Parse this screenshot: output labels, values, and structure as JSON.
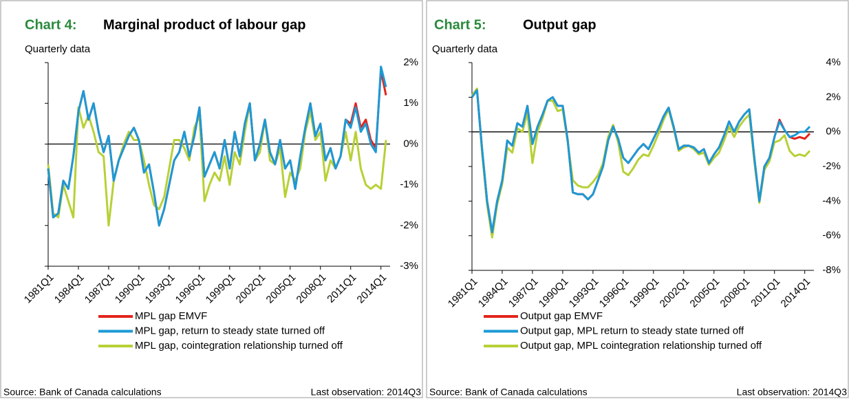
{
  "chart_data": [
    {
      "type": "line",
      "chart_label": "Chart 4:",
      "title": "Marginal product of labour gap",
      "subtitle": "Quarterly data",
      "source": "Source: Bank of Canada calculations",
      "note": "Last observation: 2014Q3",
      "x": [
        "1981Q1",
        "1981Q3",
        "1982Q1",
        "1982Q3",
        "1983Q1",
        "1983Q3",
        "1984Q1",
        "1984Q3",
        "1985Q1",
        "1985Q3",
        "1986Q1",
        "1986Q3",
        "1987Q1",
        "1987Q3",
        "1988Q1",
        "1988Q3",
        "1989Q1",
        "1989Q3",
        "1990Q1",
        "1990Q3",
        "1991Q1",
        "1991Q3",
        "1992Q1",
        "1992Q3",
        "1993Q1",
        "1993Q3",
        "1994Q1",
        "1994Q3",
        "1995Q1",
        "1995Q3",
        "1996Q1",
        "1996Q3",
        "1997Q1",
        "1997Q3",
        "1998Q1",
        "1998Q3",
        "1999Q1",
        "1999Q3",
        "2000Q1",
        "2000Q3",
        "2001Q1",
        "2001Q3",
        "2002Q1",
        "2002Q3",
        "2003Q1",
        "2003Q3",
        "2004Q1",
        "2004Q3",
        "2005Q1",
        "2005Q3",
        "2006Q1",
        "2006Q3",
        "2007Q1",
        "2007Q3",
        "2008Q1",
        "2008Q3",
        "2009Q1",
        "2009Q3",
        "2010Q1",
        "2010Q3",
        "2011Q1",
        "2011Q3",
        "2012Q1",
        "2012Q3",
        "2013Q1",
        "2013Q3",
        "2014Q1",
        "2014Q3"
      ],
      "xticks": [
        "1981Q1",
        "1984Q1",
        "1987Q1",
        "1990Q1",
        "1993Q1",
        "1996Q1",
        "1999Q1",
        "2002Q1",
        "2005Q1",
        "2008Q1",
        "2011Q1",
        "2014Q1"
      ],
      "ylim": [
        -3,
        2
      ],
      "yticks": [
        {
          "value": -3,
          "label": "-3%"
        },
        {
          "value": -2,
          "label": "-2%"
        },
        {
          "value": -1,
          "label": "-1%"
        },
        {
          "value": 0,
          "label": "0%"
        },
        {
          "value": 1,
          "label": "1%"
        },
        {
          "value": 2,
          "label": "2%"
        }
      ],
      "series": [
        {
          "name": "MPL gap EMVF",
          "color": "#e3241b",
          "values": [
            -0.6,
            -1.8,
            -1.7,
            -0.9,
            -1.1,
            -0.3,
            0.8,
            1.3,
            0.6,
            1.0,
            0.3,
            -0.2,
            0.2,
            -0.9,
            -0.4,
            -0.1,
            0.2,
            0.4,
            0.1,
            -0.7,
            -0.5,
            -1.2,
            -2.0,
            -1.6,
            -1.0,
            -0.4,
            -0.2,
            0.3,
            -0.3,
            0.2,
            0.9,
            -0.8,
            -0.5,
            -0.2,
            -0.6,
            0.1,
            -0.6,
            0.3,
            -0.3,
            0.5,
            1.0,
            -0.4,
            0.0,
            0.6,
            -0.2,
            -0.5,
            0.1,
            -0.6,
            -0.4,
            -1.1,
            -0.3,
            0.4,
            1.0,
            0.2,
            0.5,
            -0.4,
            -0.1,
            -0.6,
            -0.3,
            0.6,
            0.5,
            1.0,
            0.4,
            0.6,
            0.1,
            -0.1,
            1.8,
            1.2
          ]
        },
        {
          "name": "MPL gap, return to steady state turned off",
          "color": "#1b9ad6",
          "values": [
            -0.6,
            -1.8,
            -1.7,
            -0.9,
            -1.1,
            -0.3,
            0.8,
            1.3,
            0.6,
            1.0,
            0.3,
            -0.2,
            0.2,
            -0.9,
            -0.4,
            -0.1,
            0.2,
            0.4,
            0.1,
            -0.7,
            -0.5,
            -1.2,
            -2.0,
            -1.6,
            -1.0,
            -0.4,
            -0.2,
            0.3,
            -0.3,
            0.2,
            0.9,
            -0.8,
            -0.5,
            -0.2,
            -0.6,
            0.1,
            -0.6,
            0.3,
            -0.3,
            0.5,
            1.0,
            -0.4,
            0.0,
            0.6,
            -0.2,
            -0.5,
            0.1,
            -0.6,
            -0.4,
            -1.1,
            -0.3,
            0.4,
            1.0,
            0.2,
            0.5,
            -0.4,
            -0.1,
            -0.6,
            -0.3,
            0.6,
            0.4,
            0.9,
            0.3,
            0.5,
            0.0,
            -0.2,
            1.9,
            1.4
          ]
        },
        {
          "name": "MPL gap, cointegration relationship turned off",
          "color": "#b8d036",
          "values": [
            -0.5,
            -1.7,
            -1.8,
            -1.0,
            -1.4,
            -1.8,
            0.9,
            0.4,
            0.7,
            0.3,
            -0.2,
            -0.3,
            -2.0,
            -0.9,
            -0.4,
            0.0,
            0.3,
            0.1,
            0.1,
            -0.4,
            -1.0,
            -1.5,
            -1.6,
            -1.3,
            -0.6,
            0.1,
            0.1,
            -0.1,
            -0.4,
            0.4,
            0.7,
            -1.4,
            -1.0,
            -0.7,
            -0.9,
            -0.3,
            -1.0,
            -0.2,
            -0.5,
            0.3,
            1.0,
            -0.4,
            -0.2,
            0.6,
            -0.4,
            -0.5,
            -0.1,
            -1.3,
            -0.7,
            -0.9,
            -0.6,
            0.3,
            0.8,
            0.1,
            0.3,
            -0.9,
            -0.4,
            -0.6,
            -0.3,
            0.3,
            -0.4,
            0.3,
            -0.6,
            -1.0,
            -1.1,
            -1.0,
            -1.1,
            0.1
          ]
        }
      ]
    },
    {
      "type": "line",
      "chart_label": "Chart 5:",
      "title": "Output gap",
      "subtitle": "Quarterly data",
      "source": "Source: Bank of Canada calculations",
      "note": "Last observation: 2014Q3",
      "x": [
        "1981Q1",
        "1981Q3",
        "1982Q1",
        "1982Q3",
        "1983Q1",
        "1983Q3",
        "1984Q1",
        "1984Q3",
        "1985Q1",
        "1985Q3",
        "1986Q1",
        "1986Q3",
        "1987Q1",
        "1987Q3",
        "1988Q1",
        "1988Q3",
        "1989Q1",
        "1989Q3",
        "1990Q1",
        "1990Q3",
        "1991Q1",
        "1991Q3",
        "1992Q1",
        "1992Q3",
        "1993Q1",
        "1993Q3",
        "1994Q1",
        "1994Q3",
        "1995Q1",
        "1995Q3",
        "1996Q1",
        "1996Q3",
        "1997Q1",
        "1997Q3",
        "1998Q1",
        "1998Q3",
        "1999Q1",
        "1999Q3",
        "2000Q1",
        "2000Q3",
        "2001Q1",
        "2001Q3",
        "2002Q1",
        "2002Q3",
        "2003Q1",
        "2003Q3",
        "2004Q1",
        "2004Q3",
        "2005Q1",
        "2005Q3",
        "2006Q1",
        "2006Q3",
        "2007Q1",
        "2007Q3",
        "2008Q1",
        "2008Q3",
        "2009Q1",
        "2009Q3",
        "2010Q1",
        "2010Q3",
        "2011Q1",
        "2011Q3",
        "2012Q1",
        "2012Q3",
        "2013Q1",
        "2013Q3",
        "2014Q1",
        "2014Q3"
      ],
      "xticks": [
        "1981Q1",
        "1984Q1",
        "1987Q1",
        "1990Q1",
        "1993Q1",
        "1996Q1",
        "1999Q1",
        "2002Q1",
        "2005Q1",
        "2008Q1",
        "2011Q1",
        "2014Q1"
      ],
      "ylim": [
        -8,
        4
      ],
      "yticks": [
        {
          "value": -8,
          "label": "-8%"
        },
        {
          "value": -6,
          "label": "-6%"
        },
        {
          "value": -4,
          "label": "-4%"
        },
        {
          "value": -2,
          "label": "-2%"
        },
        {
          "value": 0,
          "label": "0%"
        },
        {
          "value": 2,
          "label": "2%"
        },
        {
          "value": 4,
          "label": "4%"
        }
      ],
      "series": [
        {
          "name": "Output gap EMVF",
          "color": "#e3241b",
          "values": [
            2.0,
            2.4,
            -1.0,
            -4.0,
            -5.8,
            -4.0,
            -2.8,
            -0.5,
            -0.8,
            0.5,
            0.3,
            1.5,
            -0.7,
            0.3,
            1.0,
            1.8,
            2.0,
            1.5,
            1.5,
            -0.5,
            -3.5,
            -3.6,
            -3.6,
            -3.9,
            -3.6,
            -2.8,
            -2.0,
            -0.5,
            0.3,
            -0.4,
            -1.5,
            -1.8,
            -1.4,
            -1.0,
            -0.7,
            -1.0,
            -0.4,
            0.2,
            0.9,
            1.4,
            0.3,
            -1.0,
            -0.8,
            -0.8,
            -0.9,
            -1.2,
            -1.0,
            -1.8,
            -1.3,
            -0.9,
            -0.2,
            0.6,
            0.0,
            0.6,
            1.0,
            1.3,
            -1.5,
            -4.0,
            -2.0,
            -1.5,
            -0.3,
            0.7,
            0.1,
            -0.3,
            -0.4,
            -0.3,
            -0.4,
            -0.1
          ]
        },
        {
          "name": "Output gap, MPL return to steady state turned off",
          "color": "#1b9ad6",
          "values": [
            2.0,
            2.4,
            -1.0,
            -4.0,
            -5.8,
            -4.0,
            -2.8,
            -0.5,
            -0.8,
            0.5,
            0.3,
            1.5,
            -0.7,
            0.3,
            1.0,
            1.8,
            2.0,
            1.5,
            1.5,
            -0.5,
            -3.5,
            -3.6,
            -3.6,
            -3.9,
            -3.6,
            -2.8,
            -2.0,
            -0.5,
            0.3,
            -0.4,
            -1.5,
            -1.8,
            -1.4,
            -1.0,
            -0.7,
            -1.0,
            -0.4,
            0.2,
            0.9,
            1.4,
            0.3,
            -1.0,
            -0.8,
            -0.8,
            -0.9,
            -1.2,
            -1.0,
            -1.8,
            -1.3,
            -0.9,
            -0.2,
            0.6,
            0.0,
            0.6,
            1.0,
            1.3,
            -1.5,
            -4.0,
            -2.0,
            -1.5,
            -0.3,
            0.6,
            0.1,
            -0.3,
            -0.2,
            0.0,
            0.0,
            0.3
          ]
        },
        {
          "name": "Output gap, MPL cointegration relationship turned off",
          "color": "#b8d036",
          "values": [
            2.1,
            2.5,
            -1.2,
            -4.2,
            -6.1,
            -4.2,
            -3.0,
            -0.9,
            -1.2,
            0.2,
            0.0,
            1.1,
            -1.8,
            0.0,
            0.8,
            1.8,
            1.8,
            1.2,
            1.3,
            -0.6,
            -2.8,
            -3.1,
            -3.2,
            -3.2,
            -2.9,
            -2.5,
            -1.8,
            -0.3,
            0.4,
            -0.6,
            -2.3,
            -2.5,
            -2.1,
            -1.6,
            -1.3,
            -1.4,
            -0.8,
            -0.1,
            0.7,
            1.3,
            0.2,
            -1.1,
            -0.9,
            -0.8,
            -1.0,
            -1.3,
            -1.2,
            -1.9,
            -1.5,
            -1.2,
            -0.5,
            0.3,
            -0.3,
            0.3,
            0.7,
            1.0,
            -1.7,
            -4.1,
            -2.2,
            -1.7,
            -0.6,
            -0.5,
            -0.2,
            -1.1,
            -1.4,
            -1.3,
            -1.4,
            -1.1
          ]
        }
      ]
    }
  ]
}
